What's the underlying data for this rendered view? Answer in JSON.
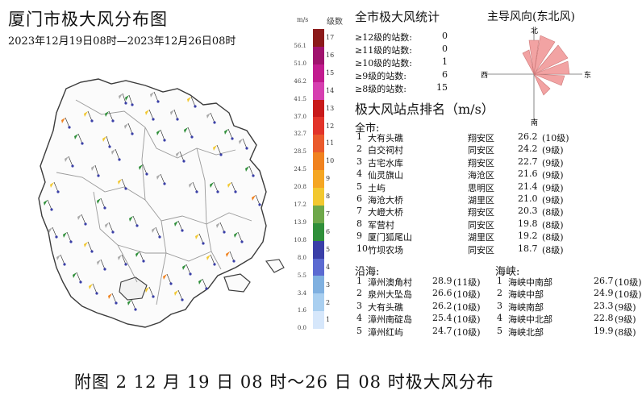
{
  "header": {
    "title": "厦门市极大风分布图",
    "subtitle": "2023年12月19日08时—2023年12月26日08时"
  },
  "scale": {
    "unit": "m/s",
    "level_header": "级数",
    "ms_labels": [
      "56.1",
      "51.0",
      "46.2",
      "41.5",
      "37.0",
      "32.7",
      "28.5",
      "24.5",
      "20.8",
      "17.2",
      "13.9",
      "10.8",
      "8.0",
      "5.5",
      "3.4",
      "1.6",
      "0.0"
    ],
    "levels": [
      "17",
      "16",
      "15",
      "14",
      "13",
      "12",
      "11",
      "10",
      "9",
      "8",
      "7",
      "6",
      "5",
      "4",
      "3",
      "2",
      "1"
    ],
    "colors": [
      "#8b1a1a",
      "#a0136e",
      "#c21b8f",
      "#d63fb0",
      "#c81a1a",
      "#e2342a",
      "#ea5a2c",
      "#f0821f",
      "#f5a623",
      "#f2c830",
      "#6ea84a",
      "#2f8f3a",
      "#3a3fa8",
      "#5b6ad1",
      "#7fb0e0",
      "#a9cff0",
      "#d6e7fb"
    ]
  },
  "stats": {
    "title": "全市极大风统计",
    "rows": [
      {
        "label": "≥12级的站数:",
        "value": "0"
      },
      {
        "label": "≥11级的站数:",
        "value": "0"
      },
      {
        "label": "≥10级的站数:",
        "value": "1"
      },
      {
        "label": "≥9级的站数:",
        "value": "6"
      },
      {
        "label": "≥8级的站数:",
        "value": "15"
      }
    ]
  },
  "rose": {
    "title": "主导风向(东北风)",
    "n": "北",
    "s": "南",
    "e": "东",
    "w": "西",
    "color": "#f2a3a3"
  },
  "ranking": {
    "title": "极大风站点排名（m/s）",
    "city_label": "全市:",
    "city": [
      {
        "rank": "1",
        "name": "大有头礁",
        "district": "翔安区",
        "value": "26.2",
        "level": "(10级)"
      },
      {
        "rank": "2",
        "name": "白交祠村",
        "district": "同安区",
        "value": "24.2",
        "level": "(9级)"
      },
      {
        "rank": "3",
        "name": "古宅水库",
        "district": "翔安区",
        "value": "22.7",
        "level": "(9级)"
      },
      {
        "rank": "4",
        "name": "仙灵旗山",
        "district": "海沧区",
        "value": "21.6",
        "level": "(9级)"
      },
      {
        "rank": "5",
        "name": "土屿",
        "district": "思明区",
        "value": "21.4",
        "level": "(9级)"
      },
      {
        "rank": "6",
        "name": "海沧大桥",
        "district": "湖里区",
        "value": "21.0",
        "level": "(9级)"
      },
      {
        "rank": "7",
        "name": "大嶝大桥",
        "district": "翔安区",
        "value": "20.3",
        "level": "(8级)"
      },
      {
        "rank": "8",
        "name": "军营村",
        "district": "同安区",
        "value": "19.8",
        "level": "(8级)"
      },
      {
        "rank": "9",
        "name": "厦门狐尾山",
        "district": "湖里区",
        "value": "19.2",
        "level": "(8级)"
      },
      {
        "rank": "10",
        "name": "竹坝农场",
        "district": "同安区",
        "value": "18.7",
        "level": "(8级)"
      }
    ],
    "coast_label": "沿海:",
    "coast": [
      {
        "rank": "1",
        "name": "漳州澳角村",
        "value": "28.9",
        "level": "(11级)"
      },
      {
        "rank": "2",
        "name": "泉州大坠岛",
        "value": "26.6",
        "level": "(10级)"
      },
      {
        "rank": "3",
        "name": "大有头礁",
        "value": "26.2",
        "level": "(10级)"
      },
      {
        "rank": "4",
        "name": "漳州南碇岛",
        "value": "25.4",
        "level": "(10级)"
      },
      {
        "rank": "5",
        "name": "漳州红屿",
        "value": "24.7",
        "level": "(10级)"
      }
    ],
    "strait_label": "海峡:",
    "strait": [
      {
        "rank": "1",
        "name": "海峡中南部",
        "value": "26.7",
        "level": "(10级)"
      },
      {
        "rank": "2",
        "name": "海峡中部",
        "value": "24.9",
        "level": "(10级)"
      },
      {
        "rank": "3",
        "name": "海峡南部",
        "value": "23.3",
        "level": "(9级)"
      },
      {
        "rank": "4",
        "name": "海峡中北部",
        "value": "22.8",
        "level": "(9级)"
      },
      {
        "rank": "5",
        "name": "海峡北部",
        "value": "19.9",
        "level": "(8级)"
      }
    ]
  },
  "caption": "附图 2  12 月 19 日 08 时～26 日 08 时极大风分布"
}
